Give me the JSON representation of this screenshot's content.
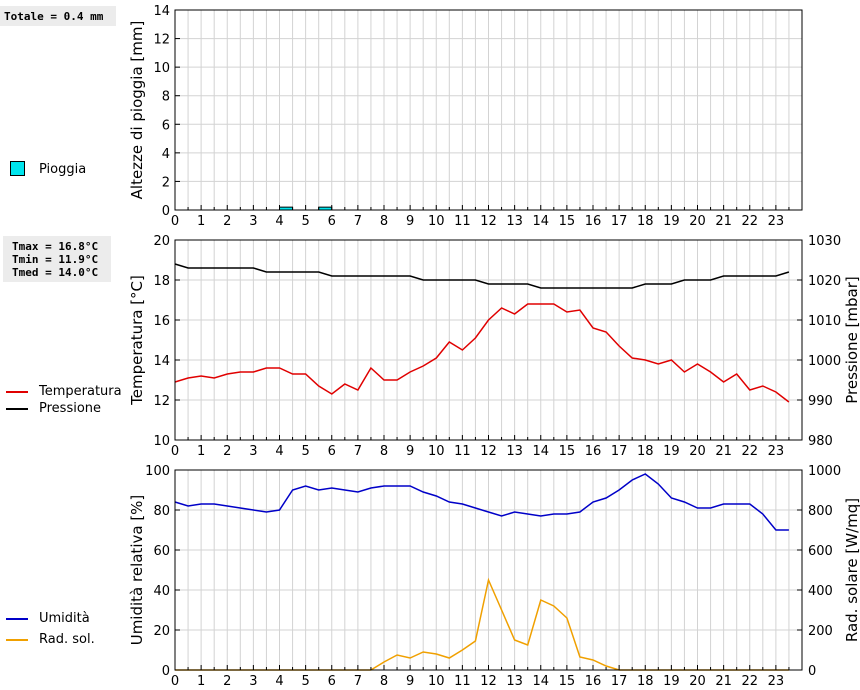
{
  "totale_text": "Totale = 0.4 mm",
  "temp_stats": [
    "Tmax = 16.8°C",
    "Tmin = 11.9°C",
    "Tmed = 14.0°C"
  ],
  "legend": {
    "pioggia": "Pioggia",
    "temperatura": "Temperatura",
    "pressione": "Pressione",
    "umidita": "Umidità",
    "rad_sol": "Rad. sol."
  },
  "colors": {
    "rain_fill": "#00e5ee",
    "temperature": "#e00000",
    "pressure": "#000000",
    "humidity": "#0000c8",
    "radiation": "#f0a000",
    "grid": "#d3d3d3"
  },
  "chart_data": [
    {
      "type": "bar",
      "ylabel": "Altezze di pioggia [mm]",
      "ylim": [
        0,
        14
      ],
      "yticks": [
        "0",
        "2",
        "4",
        "6",
        "8",
        "10",
        "12",
        "14"
      ],
      "xlim": [
        0,
        24
      ],
      "xticks": [
        "0",
        "1",
        "2",
        "3",
        "4",
        "5",
        "6",
        "7",
        "8",
        "9",
        "10",
        "11",
        "12",
        "13",
        "14",
        "15",
        "16",
        "17",
        "18",
        "19",
        "20",
        "21",
        "22",
        "23"
      ],
      "grid": true,
      "series": [
        {
          "name": "Pioggia",
          "x": [
            4.25,
            5.75
          ],
          "values": [
            0.2,
            0.2
          ]
        }
      ]
    },
    {
      "type": "line",
      "ylabel": "Temperatura [°C]",
      "ylabel_right": "Pressione [mbar]",
      "ylim": [
        10,
        20
      ],
      "ylim_right": [
        980,
        1030
      ],
      "yticks": [
        "10",
        "12",
        "14",
        "16",
        "18",
        "20"
      ],
      "yticks_right": [
        "980",
        "990",
        "1000",
        "1010",
        "1020",
        "1030"
      ],
      "xlim": [
        0,
        24
      ],
      "xticks": [
        "0",
        "1",
        "2",
        "3",
        "4",
        "5",
        "6",
        "7",
        "8",
        "9",
        "10",
        "11",
        "12",
        "13",
        "14",
        "15",
        "16",
        "17",
        "18",
        "19",
        "20",
        "21",
        "22",
        "23"
      ],
      "grid": true,
      "series": [
        {
          "name": "Temperatura",
          "axis": "left",
          "x": [
            0,
            0.5,
            1,
            1.5,
            2,
            2.5,
            3,
            3.5,
            4,
            4.5,
            5,
            5.5,
            6,
            6.5,
            7,
            7.5,
            8,
            8.5,
            9,
            9.5,
            10,
            10.5,
            11,
            11.5,
            12,
            12.5,
            13,
            13.5,
            14,
            14.5,
            15,
            15.5,
            16,
            16.5,
            17,
            17.5,
            18,
            18.5,
            19,
            19.5,
            20,
            20.5,
            21,
            21.5,
            22,
            22.5,
            23,
            23.5
          ],
          "values": [
            12.9,
            13.1,
            13.2,
            13.1,
            13.3,
            13.4,
            13.4,
            13.6,
            13.6,
            13.3,
            13.3,
            12.7,
            12.3,
            12.8,
            12.5,
            13.6,
            13.0,
            13.0,
            13.4,
            13.7,
            14.1,
            14.9,
            14.5,
            15.1,
            16.0,
            16.6,
            16.3,
            16.8,
            16.8,
            16.8,
            16.4,
            16.5,
            15.6,
            15.4,
            14.7,
            14.1,
            14.0,
            13.8,
            14.0,
            13.4,
            13.8,
            13.4,
            12.9,
            13.3,
            12.5,
            12.7,
            12.4,
            11.9
          ]
        },
        {
          "name": "Pressione",
          "axis": "right",
          "x": [
            0,
            0.5,
            1,
            1.5,
            2,
            2.5,
            3,
            3.5,
            4,
            4.5,
            5,
            5.5,
            6,
            6.5,
            7,
            7.5,
            8,
            8.5,
            9,
            9.5,
            10,
            10.5,
            11,
            11.5,
            12,
            12.5,
            13,
            13.5,
            14,
            14.5,
            15,
            15.5,
            16,
            16.5,
            17,
            17.5,
            18,
            18.5,
            19,
            19.5,
            20,
            20.5,
            21,
            21.5,
            22,
            22.5,
            23,
            23.5
          ],
          "values": [
            1024,
            1023,
            1023,
            1023,
            1023,
            1023,
            1023,
            1022,
            1022,
            1022,
            1022,
            1022,
            1021,
            1021,
            1021,
            1021,
            1021,
            1021,
            1021,
            1020,
            1020,
            1020,
            1020,
            1020,
            1019,
            1019,
            1019,
            1019,
            1018,
            1018,
            1018,
            1018,
            1018,
            1018,
            1018,
            1018,
            1019,
            1019,
            1019,
            1020,
            1020,
            1020,
            1021,
            1021,
            1021,
            1021,
            1021,
            1022
          ]
        }
      ]
    },
    {
      "type": "line",
      "ylabel": "Umidità relativa [%]",
      "ylabel_right": "Rad. solare [W/mq]",
      "ylim": [
        0,
        100
      ],
      "ylim_right": [
        0,
        1000
      ],
      "yticks": [
        "0",
        "20",
        "40",
        "60",
        "80",
        "100"
      ],
      "yticks_right": [
        "0",
        "200",
        "400",
        "600",
        "800",
        "1000"
      ],
      "xlim": [
        0,
        24
      ],
      "xticks": [
        "0",
        "1",
        "2",
        "3",
        "4",
        "5",
        "6",
        "7",
        "8",
        "9",
        "10",
        "11",
        "12",
        "13",
        "14",
        "15",
        "16",
        "17",
        "18",
        "19",
        "20",
        "21",
        "22",
        "23"
      ],
      "grid": true,
      "series": [
        {
          "name": "Umidità",
          "axis": "left",
          "x": [
            0,
            0.5,
            1,
            1.5,
            2,
            2.5,
            3,
            3.5,
            4,
            4.5,
            5,
            5.5,
            6,
            6.5,
            7,
            7.5,
            8,
            8.5,
            9,
            9.5,
            10,
            10.5,
            11,
            11.5,
            12,
            12.5,
            13,
            13.5,
            14,
            14.5,
            15,
            15.5,
            16,
            16.5,
            17,
            17.5,
            18,
            18.5,
            19,
            19.5,
            20,
            20.5,
            21,
            21.5,
            22,
            22.5,
            23,
            23.5
          ],
          "values": [
            84,
            82,
            83,
            83,
            82,
            81,
            80,
            79,
            80,
            90,
            92,
            90,
            91,
            90,
            89,
            91,
            92,
            92,
            92,
            89,
            87,
            84,
            83,
            81,
            79,
            77,
            79,
            78,
            77,
            78,
            78,
            79,
            84,
            86,
            90,
            95,
            98,
            93,
            86,
            84,
            81,
            81,
            83,
            83,
            83,
            78,
            70,
            70
          ]
        },
        {
          "name": "Rad. sol.",
          "axis": "right",
          "x": [
            0,
            0.5,
            1,
            1.5,
            2,
            2.5,
            3,
            3.5,
            4,
            4.5,
            5,
            5.5,
            6,
            6.5,
            7,
            7.5,
            8,
            8.5,
            9,
            9.5,
            10,
            10.5,
            11,
            11.5,
            12,
            12.5,
            13,
            13.5,
            14,
            14.5,
            15,
            15.5,
            16,
            16.5,
            17,
            17.5,
            18,
            18.5,
            19,
            19.5,
            20,
            20.5,
            21,
            21.5,
            22,
            22.5,
            23,
            23.5
          ],
          "values": [
            0,
            0,
            0,
            0,
            0,
            0,
            0,
            0,
            0,
            0,
            0,
            0,
            0,
            0,
            0,
            0,
            40,
            75,
            60,
            90,
            80,
            60,
            100,
            145,
            450,
            300,
            150,
            125,
            350,
            320,
            260,
            65,
            50,
            20,
            0,
            0,
            0,
            0,
            0,
            0,
            0,
            0,
            0,
            0,
            0,
            0,
            0,
            0
          ]
        }
      ]
    }
  ]
}
